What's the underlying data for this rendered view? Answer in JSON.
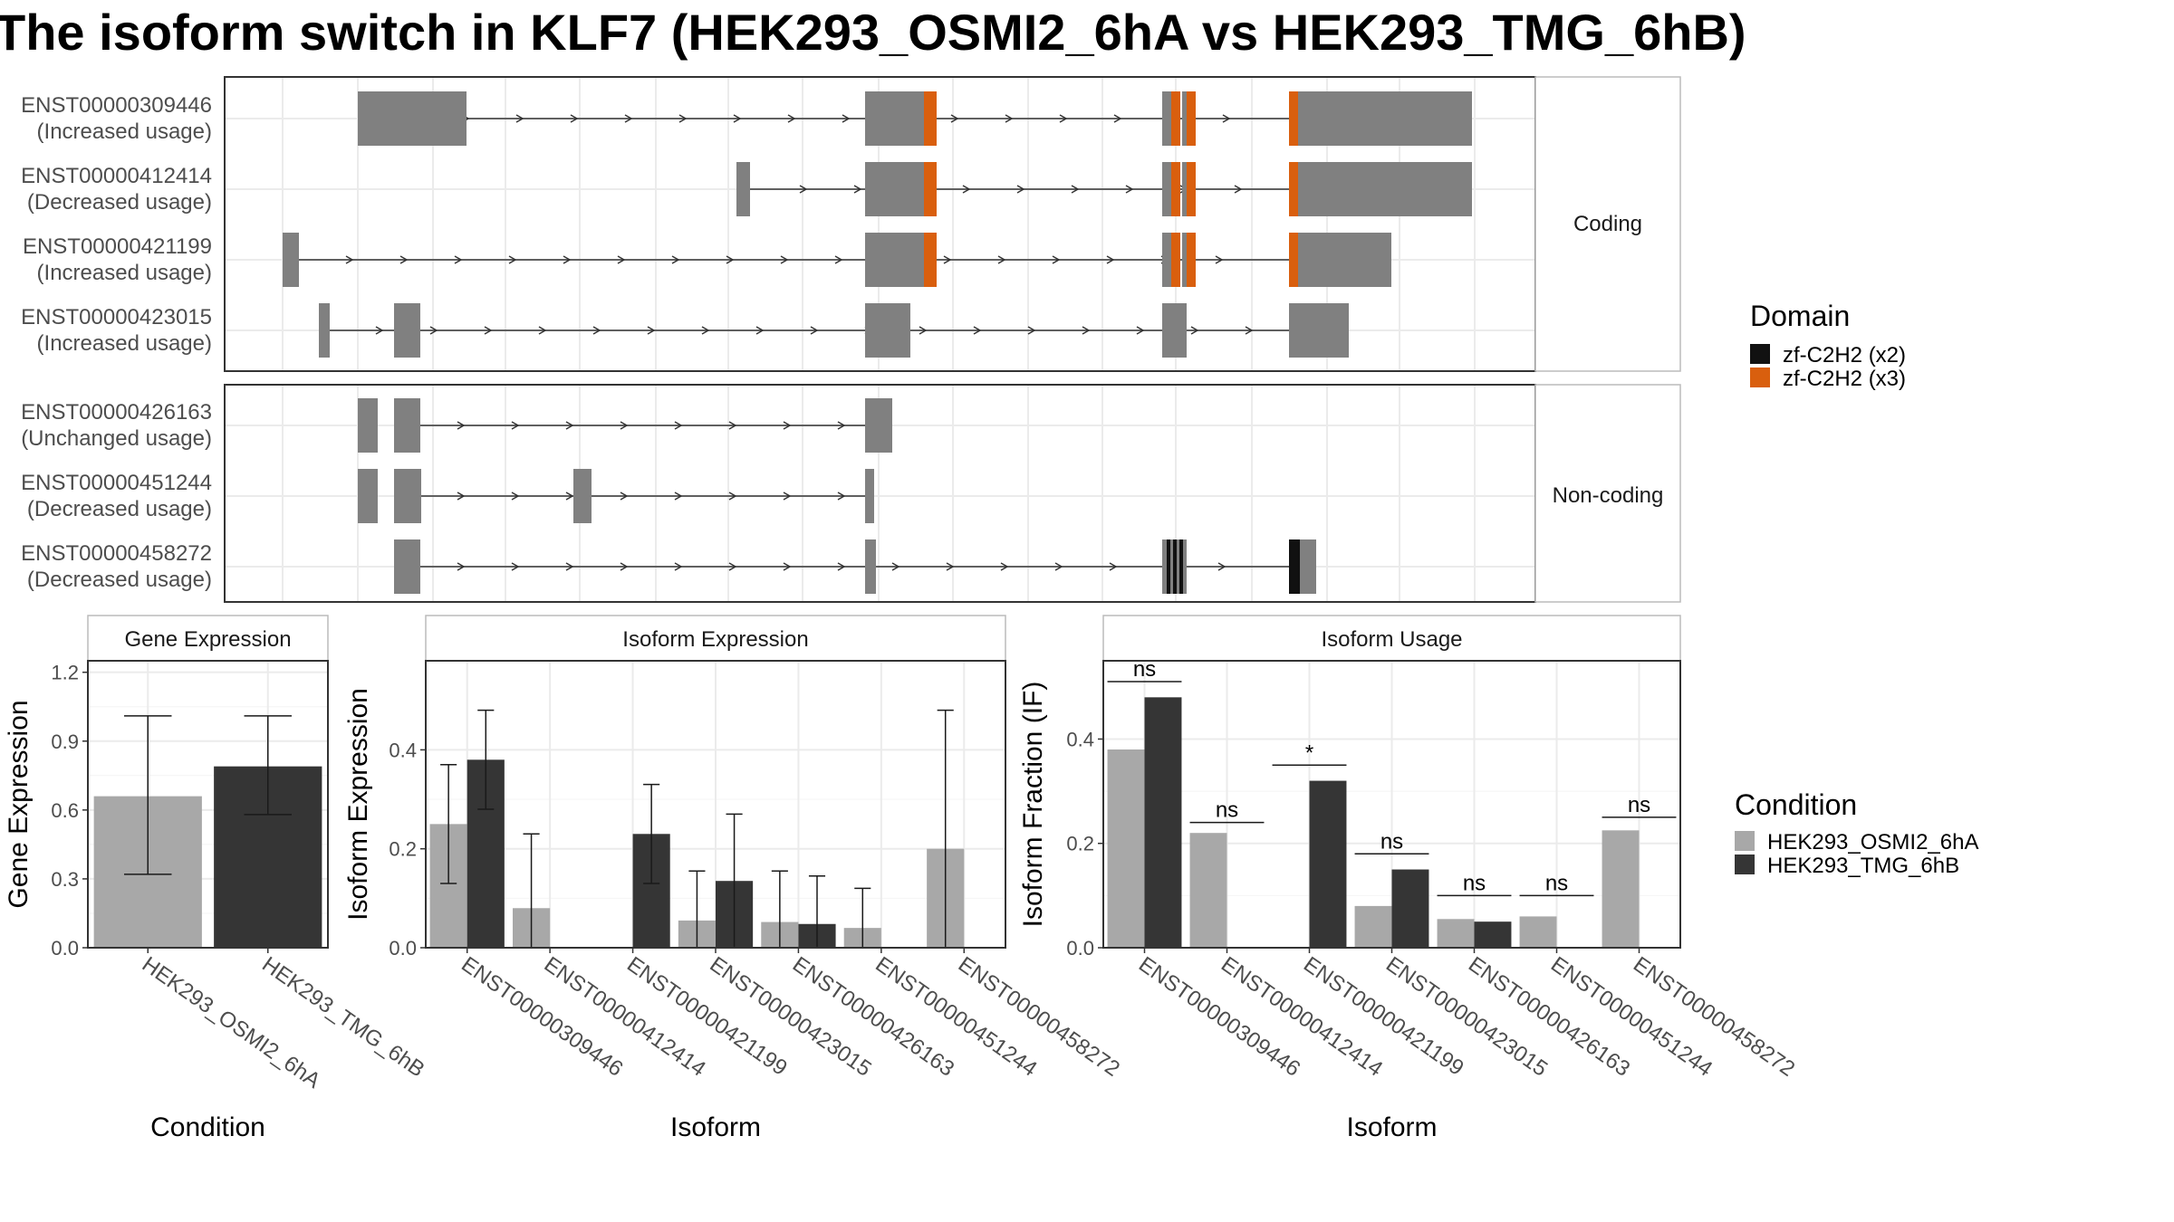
{
  "title": "The isoform switch in KLF7 (HEK293_OSMI2_6hA vs HEK293_TMG_6hB)",
  "structure_panel": {
    "facets": [
      "Coding",
      "Non-coding"
    ],
    "transcripts": [
      {
        "id": "ENST00000309446",
        "usage": "(Increased usage)",
        "facet": "Coding"
      },
      {
        "id": "ENST00000412414",
        "usage": "(Decreased usage)",
        "facet": "Coding"
      },
      {
        "id": "ENST00000421199",
        "usage": "(Increased usage)",
        "facet": "Coding"
      },
      {
        "id": "ENST00000423015",
        "usage": "(Increased usage)",
        "facet": "Coding"
      },
      {
        "id": "ENST00000426163",
        "usage": "(Unchanged usage)",
        "facet": "Non-coding"
      },
      {
        "id": "ENST00000451244",
        "usage": "(Decreased usage)",
        "facet": "Non-coding"
      },
      {
        "id": "ENST00000458272",
        "usage": "(Decreased usage)",
        "facet": "Non-coding"
      }
    ],
    "domain_legend": {
      "title": "Domain",
      "items": [
        {
          "label": "zf-C2H2 (x2)",
          "color": "#111111"
        },
        {
          "label": "zf-C2H2 (x3)",
          "color": "#d95f0e"
        }
      ]
    }
  },
  "condition_legend": {
    "title": "Condition",
    "items": [
      {
        "label": "HEK293_OSMI2_6hA",
        "color": "#a8a8a8"
      },
      {
        "label": "HEK293_TMG_6hB",
        "color": "#353535"
      }
    ]
  },
  "chart_data": [
    {
      "type": "bar",
      "panel": "Gene Expression",
      "xlabel": "Condition",
      "ylabel": "Gene Expression",
      "ylim": [
        0,
        1.25
      ],
      "yticks": [
        "0.0",
        "0.3",
        "0.6",
        "0.9",
        "1.2"
      ],
      "categories": [
        "HEK293_OSMI2_6hA",
        "HEK293_TMG_6hB"
      ],
      "values": [
        0.66,
        0.79
      ],
      "error_low": [
        0.32,
        0.58
      ],
      "error_high": [
        1.01,
        1.01
      ],
      "grid": true
    },
    {
      "type": "bar",
      "panel": "Isoform Expression",
      "xlabel": "Isoform",
      "ylabel": "Isoform Expression",
      "ylim": [
        0,
        0.58
      ],
      "yticks": [
        "0.0",
        "0.2",
        "0.4"
      ],
      "categories": [
        "ENST00000309446",
        "ENST00000412414",
        "ENST00000421199",
        "ENST00000423015",
        "ENST00000426163",
        "ENST00000451244",
        "ENST00000458272"
      ],
      "series": [
        {
          "name": "HEK293_OSMI2_6hA",
          "values": [
            0.25,
            0.08,
            0.0,
            0.055,
            0.052,
            0.04,
            0.2
          ],
          "error_low": [
            0.13,
            0.0,
            0.0,
            0.0,
            0.0,
            0.0,
            0.0
          ],
          "error_high": [
            0.37,
            0.23,
            0.0,
            0.155,
            0.155,
            0.12,
            0.48
          ]
        },
        {
          "name": "HEK293_TMG_6hB",
          "values": [
            0.38,
            0.0,
            0.23,
            0.135,
            0.048,
            0.0,
            0.0
          ],
          "error_low": [
            0.28,
            0.0,
            0.13,
            0.0,
            0.0,
            0.0,
            0.0
          ],
          "error_high": [
            0.48,
            0.0,
            0.33,
            0.27,
            0.145,
            0.0,
            0.0
          ]
        }
      ],
      "grid": true
    },
    {
      "type": "bar",
      "panel": "Isoform Usage",
      "xlabel": "Isoform",
      "ylabel": "Isoform Fraction (IF)",
      "ylim": [
        0,
        0.55
      ],
      "yticks": [
        "0.0",
        "0.2",
        "0.4"
      ],
      "categories": [
        "ENST00000309446",
        "ENST00000412414",
        "ENST00000421199",
        "ENST00000423015",
        "ENST00000426163",
        "ENST00000451244",
        "ENST00000458272"
      ],
      "series": [
        {
          "name": "HEK293_OSMI2_6hA",
          "values": [
            0.38,
            0.22,
            0.0,
            0.08,
            0.055,
            0.06,
            0.225
          ]
        },
        {
          "name": "HEK293_TMG_6hB",
          "values": [
            0.48,
            0.0,
            0.32,
            0.15,
            0.05,
            0.0,
            0.0
          ]
        }
      ],
      "significance": [
        "ns",
        "ns",
        "*",
        "ns",
        "ns",
        "ns",
        "ns"
      ],
      "significance_y": [
        0.51,
        0.24,
        0.35,
        0.18,
        0.1,
        0.1,
        0.25
      ],
      "grid": true
    }
  ]
}
